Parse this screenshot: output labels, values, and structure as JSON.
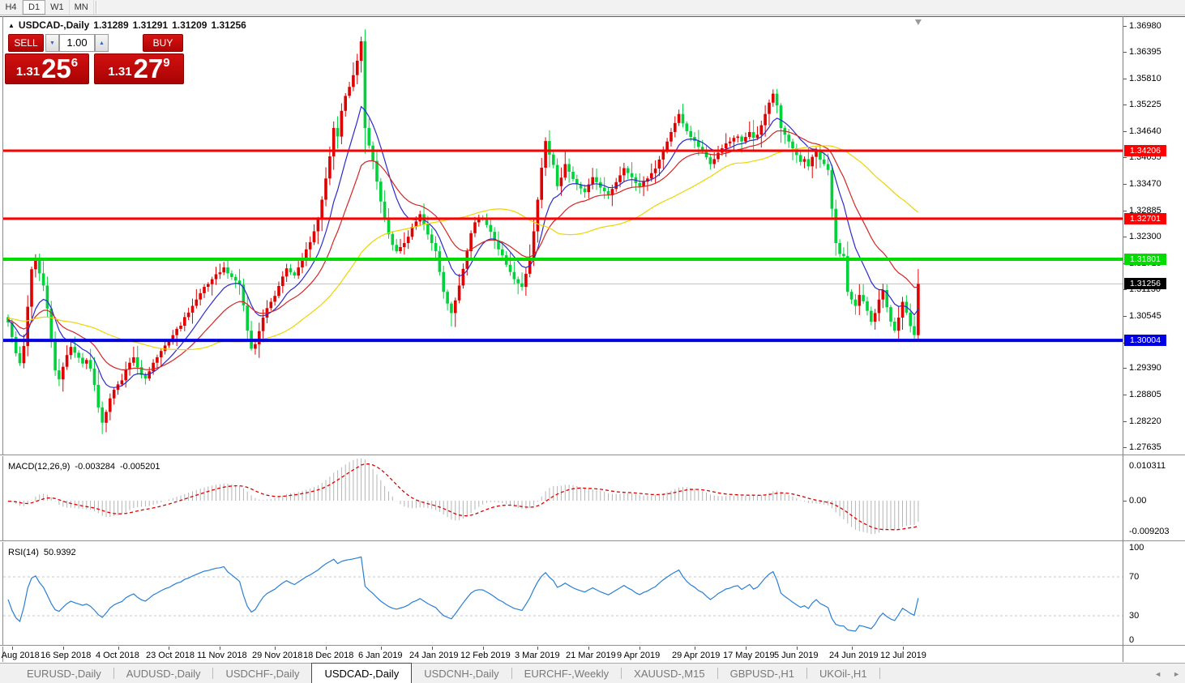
{
  "toolbar": {
    "timeframes": [
      {
        "label": "H4",
        "active": false
      },
      {
        "label": "D1",
        "active": true
      },
      {
        "label": "W1",
        "active": false
      },
      {
        "label": "MN",
        "active": false
      }
    ]
  },
  "window": {
    "collapse_icon": "▲",
    "symbol_title": "USDCAD-,Daily",
    "open": "1.31289",
    "high": "1.31291",
    "low": "1.31209",
    "close": "1.31256"
  },
  "trade_panel": {
    "sell_label": "SELL",
    "buy_label": "BUY",
    "volume_value": "1.00",
    "spinner_down_icon": "▼",
    "spinner_up_icon": "▲",
    "bid": {
      "prefix": "1.31",
      "big": "25",
      "sup": "6"
    },
    "ask": {
      "prefix": "1.31",
      "big": "27",
      "sup": "9"
    }
  },
  "price_axis": {
    "ticks": [
      "1.36980",
      "1.36395",
      "1.35810",
      "1.35225",
      "1.34640",
      "1.34055",
      "1.33470",
      "1.32885",
      "1.32300",
      "1.31715",
      "1.31130",
      "1.30545",
      "1.29960",
      "1.29390",
      "1.28805",
      "1.28220",
      "1.27635"
    ]
  },
  "macd_panel": {
    "name": "MACD(12,26,9)",
    "value_main": "-0.003284",
    "value_signal": "-0.005201",
    "axis_top": "0.010311",
    "axis_zero": "0.00",
    "axis_bottom": "-0.009203"
  },
  "rsi_panel": {
    "name": "RSI(14)",
    "value": "50.9392",
    "axis_ticks": [
      "100",
      "70",
      "30",
      "0"
    ],
    "levels": [
      70,
      30
    ]
  },
  "date_axis": {
    "labels": [
      "28 Aug 2018",
      "16 Sep 2018",
      "4 Oct 2018",
      "23 Oct 2018",
      "11 Nov 2018",
      "29 Nov 2018",
      "18 Dec 2018",
      "6 Jan 2019",
      "24 Jan 2019",
      "12 Feb 2019",
      "3 Mar 2019",
      "21 Mar 2019",
      "9 Apr 2019",
      "29 Apr 2019",
      "17 May 2019",
      "5 Jun 2019",
      "24 Jun 2019",
      "12 Jul 2019"
    ]
  },
  "tabs": {
    "items": [
      {
        "label": "EURUSD-,Daily",
        "active": false
      },
      {
        "label": "AUDUSD-,Daily",
        "active": false
      },
      {
        "label": "USDCHF-,Daily",
        "active": false
      },
      {
        "label": "USDCAD-,Daily",
        "active": true
      },
      {
        "label": "USDCNH-,Daily",
        "active": false
      },
      {
        "label": "EURCHF-,Weekly",
        "active": false
      },
      {
        "label": "XAUUSD-,M15",
        "active": false
      },
      {
        "label": "GBPUSD-,H1",
        "active": false
      },
      {
        "label": "UKOil-,H1",
        "active": false
      }
    ],
    "scroll_left": "◄",
    "scroll_right": "►"
  },
  "colors": {
    "bull": "#e00000",
    "bear": "#00d23c",
    "ma_fast": "#2a2ad2",
    "ma_mid": "#d42626",
    "ma_slow": "#ecd500",
    "macd_hist": "#b4b4b4",
    "macd_signal": "#e00000",
    "rsi_line": "#2a7fd4",
    "level_dash": "#c8c8c8",
    "line_red": "#fe0000",
    "line_green": "#00dc00",
    "line_blue": "#0000e8",
    "current_line": "#c0c0c0",
    "current_label_bg": "#000000"
  },
  "chart_data": {
    "type": "candlestick",
    "symbol": "USDCAD",
    "timeframe": "Daily",
    "price_range": [
      1.2744,
      1.3715
    ],
    "current_price": 1.31256,
    "hlines": [
      {
        "price": 1.34206,
        "label": "1.34206",
        "color": "#fe0000",
        "width": 3
      },
      {
        "price": 1.32701,
        "label": "1.32701",
        "color": "#fe0000",
        "width": 3
      },
      {
        "price": 1.31801,
        "label": "1.31801",
        "color": "#00dc00",
        "width": 4
      },
      {
        "price": 1.30004,
        "label": "1.30004",
        "color": "#0000e8",
        "width": 4
      }
    ],
    "closes": [
      1.304,
      1.3008,
      1.2972,
      1.295,
      1.2988,
      1.3075,
      1.3158,
      1.3182,
      1.3149,
      1.3122,
      1.3071,
      1.3003,
      1.2934,
      1.2914,
      1.2942,
      1.2968,
      1.2986,
      1.2973,
      1.2962,
      1.2949,
      1.2957,
      1.2938,
      1.2902,
      1.2852,
      1.2818,
      1.2842,
      1.2872,
      1.2891,
      1.2903,
      1.2912,
      1.2936,
      1.2951,
      1.2963,
      1.2941,
      1.2924,
      1.2916,
      1.2932,
      1.2951,
      1.2963,
      1.2977,
      1.2989,
      1.2997,
      1.3012,
      1.3026,
      1.3033,
      1.3052,
      1.3062,
      1.3077,
      1.3091,
      1.3105,
      1.3119,
      1.3125,
      1.3136,
      1.3147,
      1.3151,
      1.3162,
      1.3149,
      1.3141,
      1.3133,
      1.3124,
      1.3078,
      1.3022,
      1.2982,
      1.2992,
      1.3021,
      1.3051,
      1.3072,
      1.3086,
      1.3099,
      1.3121,
      1.3142,
      1.316,
      1.3151,
      1.3144,
      1.3162,
      1.3181,
      1.3202,
      1.3218,
      1.3242,
      1.3268,
      1.3312,
      1.3359,
      1.3408,
      1.3471,
      1.3452,
      1.3509,
      1.3542,
      1.3562,
      1.3588,
      1.362,
      1.3663,
      1.3471,
      1.3432,
      1.3398,
      1.3352,
      1.3308,
      1.3272,
      1.3236,
      1.3212,
      1.3198,
      1.3207,
      1.3216,
      1.323,
      1.3252,
      1.3264,
      1.328,
      1.3258,
      1.3235,
      1.3216,
      1.3198,
      1.3152,
      1.3108,
      1.3082,
      1.3061,
      1.3089,
      1.3122,
      1.3159,
      1.3198,
      1.3238,
      1.3262,
      1.3271,
      1.3269,
      1.3256,
      1.3241,
      1.3222,
      1.3202,
      1.3189,
      1.3168,
      1.3152,
      1.3136,
      1.3127,
      1.3119,
      1.3148,
      1.3183,
      1.3242,
      1.3312,
      1.3383,
      1.3442,
      1.3412,
      1.3389,
      1.3342,
      1.3361,
      1.3391,
      1.3374,
      1.3358,
      1.3346,
      1.3337,
      1.3329,
      1.3346,
      1.3362,
      1.3351,
      1.3339,
      1.3331,
      1.3322,
      1.3336,
      1.3351,
      1.3366,
      1.3382,
      1.3371,
      1.3362,
      1.3349,
      1.3341,
      1.3352,
      1.3359,
      1.3371,
      1.3381,
      1.3401,
      1.3422,
      1.3441,
      1.3462,
      1.3482,
      1.3502,
      1.3481,
      1.3464,
      1.3451,
      1.3442,
      1.3429,
      1.3421,
      1.3406,
      1.3391,
      1.3402,
      1.3416,
      1.3426,
      1.3437,
      1.3441,
      1.3449,
      1.3452,
      1.3441,
      1.3451,
      1.3462,
      1.3449,
      1.3456,
      1.3477,
      1.3502,
      1.3527,
      1.3547,
      1.3521,
      1.3471,
      1.3456,
      1.3441,
      1.3426,
      1.3411,
      1.3396,
      1.3402,
      1.3386,
      1.3407,
      1.3421,
      1.3401,
      1.3391,
      1.3378,
      1.3292,
      1.3216,
      1.3192,
      1.3187,
      1.3108,
      1.3091,
      1.3077,
      1.3101,
      1.3087,
      1.3066,
      1.3042,
      1.3061,
      1.3091,
      1.3112,
      1.3074,
      1.3042,
      1.3022,
      1.3051,
      1.3086,
      1.3062,
      1.3032,
      1.3012,
      1.31256
    ],
    "indicators": {
      "moving_averages": [
        {
          "type": "EMA",
          "period": 10,
          "color": "#2a2ad2"
        },
        {
          "type": "EMA",
          "period": 22,
          "color": "#d42626"
        },
        {
          "type": "SMA",
          "period": 50,
          "color": "#ecd500"
        }
      ],
      "macd": {
        "params": "12,26,9",
        "last_main": -0.003284,
        "last_signal": -0.005201,
        "axis_range": [
          -0.009203,
          0.010311
        ]
      },
      "rsi": {
        "params": "14",
        "last": 50.9392,
        "levels": [
          30,
          70
        ],
        "axis_range": [
          0,
          100
        ]
      }
    }
  }
}
